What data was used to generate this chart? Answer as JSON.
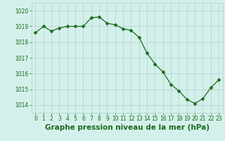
{
  "hours": [
    0,
    1,
    2,
    3,
    4,
    5,
    6,
    7,
    8,
    9,
    10,
    11,
    12,
    13,
    14,
    15,
    16,
    17,
    18,
    19,
    20,
    21,
    22,
    23
  ],
  "pressure": [
    1018.6,
    1019.0,
    1018.7,
    1018.9,
    1019.0,
    1019.0,
    1019.0,
    1019.55,
    1019.6,
    1019.2,
    1019.1,
    1018.85,
    1018.75,
    1018.3,
    1017.3,
    1016.6,
    1016.1,
    1015.3,
    1014.9,
    1014.35,
    1014.1,
    1014.4,
    1015.1,
    1015.6
  ],
  "line_color": "#1a6b1a",
  "marker": "D",
  "marker_size": 2.5,
  "bg_color": "#d4f0eb",
  "grid_color": "#b8d8d2",
  "title": "Graphe pression niveau de la mer (hPa)",
  "ylim": [
    1013.5,
    1020.5
  ],
  "xlim": [
    -0.5,
    23.5
  ],
  "yticks": [
    1014,
    1015,
    1016,
    1017,
    1018,
    1019,
    1020
  ],
  "xticks": [
    0,
    1,
    2,
    3,
    4,
    5,
    6,
    7,
    8,
    9,
    10,
    11,
    12,
    13,
    14,
    15,
    16,
    17,
    18,
    19,
    20,
    21,
    22,
    23
  ],
  "tick_fontsize": 5.5,
  "title_fontsize": 7.5,
  "title_fontweight": "bold"
}
